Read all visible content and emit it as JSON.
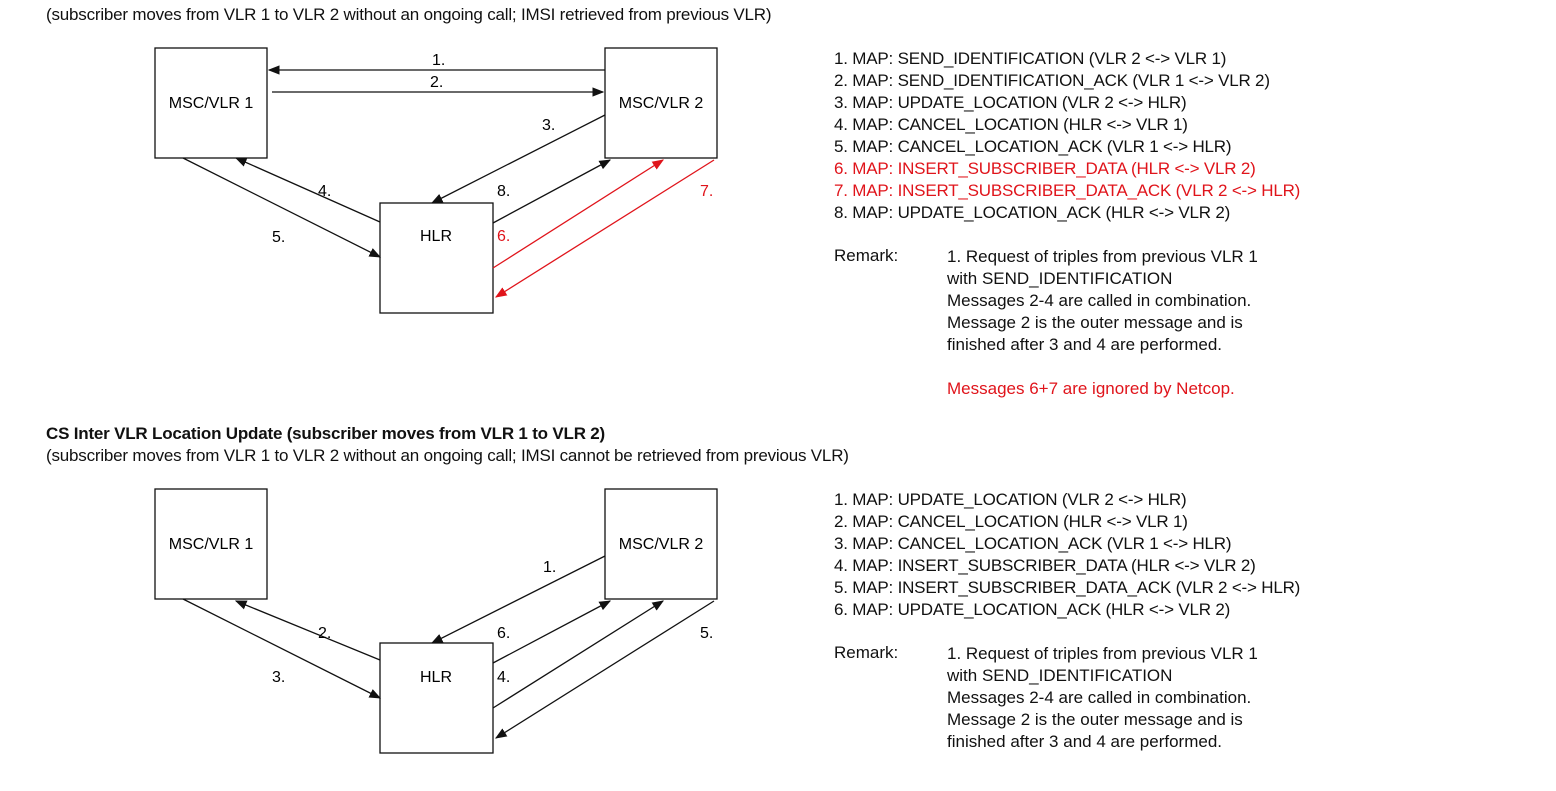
{
  "colors": {
    "black": "#111111",
    "red": "#e0141b"
  },
  "top": {
    "subtitle": "(subscriber moves from VLR 1 to VLR 2 without an ongoing call; IMSI retrieved from previous VLR)",
    "nodes": {
      "vlr1": "MSC/VLR 1",
      "vlr2": "MSC/VLR 2",
      "hlr": "HLR"
    },
    "arrow_labels": [
      "1.",
      "2.",
      "3.",
      "4.",
      "5.",
      "6.",
      "7.",
      "8."
    ],
    "messages": [
      "1. MAP: SEND_IDENTIFICATION (VLR 2 <-> VLR 1)",
      "2. MAP: SEND_IDENTIFICATION_ACK (VLR 1 <-> VLR 2)",
      "3. MAP: UPDATE_LOCATION (VLR 2 <-> HLR)",
      "4. MAP: CANCEL_LOCATION (HLR <-> VLR 1)",
      "5. MAP: CANCEL_LOCATION_ACK (VLR 1 <-> HLR)",
      "6. MAP: INSERT_SUBSCRIBER_DATA (HLR <-> VLR 2)",
      "7. MAP: INSERT_SUBSCRIBER_DATA_ACK (VLR 2 <-> HLR)",
      "8. MAP: UPDATE_LOCATION_ACK (HLR <-> VLR 2)"
    ],
    "remark_label": "Remark:",
    "remark_lines": [
      "1. Request of triples from previous VLR 1",
      "with SEND_IDENTIFICATION",
      "Messages 2-4 are called in combination.",
      "Message 2 is the outer message and is",
      "finished after 3 and 4 are performed."
    ],
    "remark_red": "Messages 6+7 are ignored by Netcop."
  },
  "bottom": {
    "title": "CS Inter VLR Location Update (subscriber moves from VLR 1 to VLR 2)",
    "subtitle": "(subscriber moves from VLR 1 to VLR 2 without an ongoing call; IMSI cannot be retrieved from previous VLR)",
    "nodes": {
      "vlr1": "MSC/VLR 1",
      "vlr2": "MSC/VLR 2",
      "hlr": "HLR"
    },
    "arrow_labels": [
      "1.",
      "2.",
      "3.",
      "4.",
      "5.",
      "6."
    ],
    "messages": [
      "1. MAP: UPDATE_LOCATION (VLR 2 <-> HLR)",
      "2. MAP: CANCEL_LOCATION (HLR <-> VLR 1)",
      "3. MAP: CANCEL_LOCATION_ACK (VLR 1 <-> HLR)",
      "4. MAP: INSERT_SUBSCRIBER_DATA (HLR <-> VLR 2)",
      "5. MAP: INSERT_SUBSCRIBER_DATA_ACK (VLR 2 <-> HLR)",
      "6. MAP: UPDATE_LOCATION_ACK (HLR <-> VLR 2)"
    ],
    "remark_label": "Remark:",
    "remark_lines": [
      "1. Request of triples from previous VLR 1",
      "with SEND_IDENTIFICATION",
      "Messages 2-4 are called in combination.",
      "Message 2 is the outer message and is",
      "finished after 3 and 4 are performed."
    ]
  }
}
